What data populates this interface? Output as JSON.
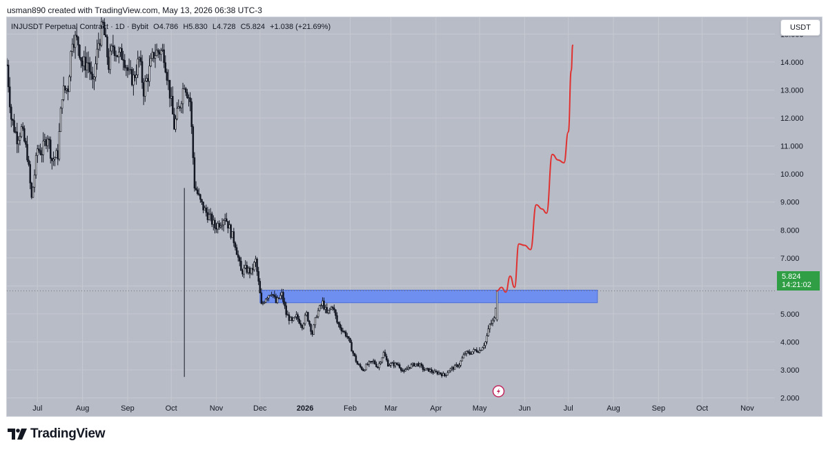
{
  "header": {
    "credit": "usman890 created with TradingView.com, May 13, 2026 06:38 UTC-3"
  },
  "legend": {
    "symbol": "INJUSDT Perpetual Contract · 1D · Bybit",
    "open": "O4.786",
    "high": "H5.830",
    "low": "L4.728",
    "close": "C5.824",
    "change": "+1.038 (+21.69%)"
  },
  "price_axis": {
    "unit": "USDT",
    "labels": [
      "15.000",
      "14.000",
      "13.000",
      "12.000",
      "11.000",
      "10.000",
      "9.000",
      "8.000",
      "7.000",
      "6.000",
      "5.000",
      "4.000",
      "3.000",
      "2.000"
    ]
  },
  "current_price": {
    "value": "5.824",
    "countdown": "14:21:02",
    "color": "#2f9e44"
  },
  "time_axis": {
    "labels": [
      "Jul",
      "Aug",
      "Sep",
      "Oct",
      "Nov",
      "Dec",
      "2026",
      "Feb",
      "Mar",
      "Apr",
      "May",
      "Jun",
      "Jul",
      "Aug",
      "Sep",
      "Oct",
      "Nov"
    ]
  },
  "footer": {
    "brand": "TradingView",
    "logo_icon": "tradingview-logo-icon"
  },
  "colors": {
    "background": "#b8bcc6",
    "candles": "#131722",
    "zone": "#6f8ff0",
    "projection": "#e03131",
    "price_line": "#777777"
  },
  "chart_data": {
    "type": "candlestick",
    "symbol": "INJUSDT",
    "interval": "1D",
    "ylim": [
      1.3,
      15.6
    ],
    "x_start": "2025-06-10",
    "x_end": "2026-11-20",
    "series": [
      {
        "name": "price",
        "points": [
          [
            "2025-06-10",
            13.9
          ],
          [
            "2025-06-13",
            12.0
          ],
          [
            "2025-06-17",
            11.3
          ],
          [
            "2025-06-20",
            11.6
          ],
          [
            "2025-06-24",
            10.7
          ],
          [
            "2025-06-27",
            9.1
          ],
          [
            "2025-07-01",
            10.9
          ],
          [
            "2025-07-04",
            10.8
          ],
          [
            "2025-07-08",
            11.4
          ],
          [
            "2025-07-11",
            10.5
          ],
          [
            "2025-07-15",
            10.7
          ],
          [
            "2025-07-18",
            12.9
          ],
          [
            "2025-07-22",
            13.1
          ],
          [
            "2025-07-25",
            14.9
          ],
          [
            "2025-07-29",
            14.7
          ],
          [
            "2025-08-01",
            13.9
          ],
          [
            "2025-08-05",
            14.0
          ],
          [
            "2025-08-08",
            13.1
          ],
          [
            "2025-08-12",
            14.7
          ],
          [
            "2025-08-15",
            15.3
          ],
          [
            "2025-08-19",
            13.9
          ],
          [
            "2025-08-22",
            14.6
          ],
          [
            "2025-08-26",
            14.2
          ],
          [
            "2025-08-29",
            14.3
          ],
          [
            "2025-09-02",
            13.5
          ],
          [
            "2025-09-05",
            13.4
          ],
          [
            "2025-09-09",
            14.1
          ],
          [
            "2025-09-12",
            13.0
          ],
          [
            "2025-09-16",
            13.7
          ],
          [
            "2025-09-19",
            14.3
          ],
          [
            "2025-09-23",
            14.4
          ],
          [
            "2025-09-26",
            14.3
          ],
          [
            "2025-09-30",
            12.9
          ],
          [
            "2025-10-03",
            11.7
          ],
          [
            "2025-10-07",
            12.5
          ],
          [
            "2025-10-10",
            13.3
          ],
          [
            "2025-10-14",
            12.6
          ],
          [
            "2025-10-17",
            9.6
          ],
          [
            "2025-10-21",
            9.0
          ],
          [
            "2025-10-24",
            8.7
          ],
          [
            "2025-10-28",
            8.4
          ],
          [
            "2025-10-31",
            8.1
          ],
          [
            "2025-11-04",
            8.3
          ],
          [
            "2025-11-07",
            8.5
          ],
          [
            "2025-11-11",
            7.9
          ],
          [
            "2025-11-14",
            7.5
          ],
          [
            "2025-11-18",
            6.5
          ],
          [
            "2025-11-21",
            6.6
          ],
          [
            "2025-11-25",
            6.5
          ],
          [
            "2025-11-28",
            6.9
          ],
          [
            "2025-12-02",
            5.3
          ],
          [
            "2025-12-05",
            5.6
          ],
          [
            "2025-12-09",
            5.8
          ],
          [
            "2025-12-12",
            5.4
          ],
          [
            "2025-12-16",
            5.7
          ],
          [
            "2025-12-19",
            5.0
          ],
          [
            "2025-12-23",
            4.7
          ],
          [
            "2025-12-26",
            4.9
          ],
          [
            "2025-12-30",
            4.6
          ],
          [
            "2026-01-02",
            5.0
          ],
          [
            "2026-01-06",
            4.3
          ],
          [
            "2026-01-09",
            5.0
          ],
          [
            "2026-01-13",
            5.4
          ],
          [
            "2026-01-16",
            5.0
          ],
          [
            "2026-01-20",
            5.3
          ],
          [
            "2026-01-23",
            4.7
          ],
          [
            "2026-01-27",
            4.4
          ],
          [
            "2026-01-30",
            4.2
          ],
          [
            "2026-02-03",
            3.6
          ],
          [
            "2026-02-06",
            3.2
          ],
          [
            "2026-02-10",
            3.0
          ],
          [
            "2026-02-13",
            3.2
          ],
          [
            "2026-02-17",
            3.3
          ],
          [
            "2026-02-20",
            3.1
          ],
          [
            "2026-02-24",
            3.6
          ],
          [
            "2026-02-27",
            3.2
          ],
          [
            "2026-03-03",
            3.2
          ],
          [
            "2026-03-06",
            3.2
          ],
          [
            "2026-03-10",
            2.9
          ],
          [
            "2026-03-13",
            3.1
          ],
          [
            "2026-03-17",
            3.2
          ],
          [
            "2026-03-20",
            3.2
          ],
          [
            "2026-03-24",
            3.0
          ],
          [
            "2026-03-27",
            3.0
          ],
          [
            "2026-03-31",
            2.9
          ],
          [
            "2026-04-03",
            2.9
          ],
          [
            "2026-04-07",
            2.8
          ],
          [
            "2026-04-10",
            3.0
          ],
          [
            "2026-04-14",
            3.1
          ],
          [
            "2026-04-17",
            3.2
          ],
          [
            "2026-04-21",
            3.6
          ],
          [
            "2026-04-24",
            3.6
          ],
          [
            "2026-04-28",
            3.7
          ],
          [
            "2026-05-01",
            3.7
          ],
          [
            "2026-05-05",
            4.0
          ],
          [
            "2026-05-08",
            4.6
          ],
          [
            "2026-05-11",
            4.8
          ],
          [
            "2026-05-13",
            5.82
          ]
        ]
      },
      {
        "name": "projection",
        "points": [
          [
            "2026-05-13",
            5.82
          ],
          [
            "2026-05-16",
            5.95
          ],
          [
            "2026-05-19",
            5.78
          ],
          [
            "2026-05-22",
            6.35
          ],
          [
            "2026-05-25",
            5.95
          ],
          [
            "2026-05-28",
            7.5
          ],
          [
            "2026-06-01",
            7.45
          ],
          [
            "2026-06-05",
            7.3
          ],
          [
            "2026-06-09",
            8.9
          ],
          [
            "2026-06-13",
            8.75
          ],
          [
            "2026-06-16",
            8.6
          ],
          [
            "2026-06-20",
            10.7
          ],
          [
            "2026-06-24",
            10.5
          ],
          [
            "2026-06-28",
            10.4
          ],
          [
            "2026-07-01",
            11.5
          ],
          [
            "2026-07-03",
            13.7
          ],
          [
            "2026-07-04",
            14.6
          ]
        ]
      }
    ],
    "zones": [
      {
        "name": "resistance zone",
        "from": "2025-12-01",
        "to": "2026-07-21",
        "low": 5.4,
        "high": 5.85
      }
    ],
    "current_price": 5.824,
    "ylabel": "USDT",
    "grid": true
  }
}
